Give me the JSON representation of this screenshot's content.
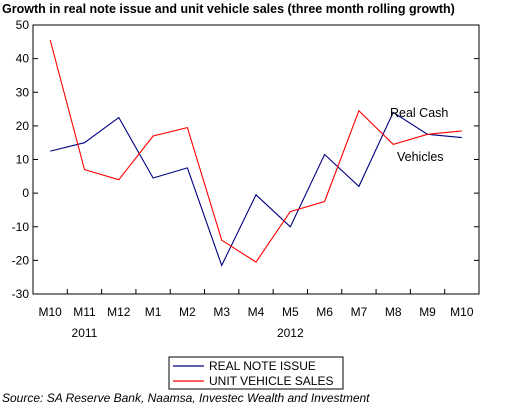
{
  "title": "Growth in real note issue and unit vehicle sales (three month rolling growth)",
  "source": "Source: SA Reserve Bank, Naamsa, Investec Wealth and Investment",
  "chart_data": {
    "type": "line",
    "categories": [
      "M10",
      "M11",
      "M12",
      "M1",
      "M2",
      "M3",
      "M4",
      "M5",
      "M6",
      "M7",
      "M8",
      "M9",
      "M10"
    ],
    "year_labels": [
      {
        "label": "2011",
        "category_index": 1
      },
      {
        "label": "2012",
        "category_index": 7
      }
    ],
    "ylim": [
      -30,
      50
    ],
    "yticks": [
      -30,
      -20,
      -10,
      0,
      10,
      20,
      30,
      40,
      50
    ],
    "series": [
      {
        "name": "REAL NOTE ISSUE",
        "color": "#000080",
        "values": [
          12.5,
          15,
          22.5,
          4.5,
          7.5,
          -21.5,
          -0.5,
          -10,
          11.5,
          2,
          24,
          17.5,
          16.5
        ]
      },
      {
        "name": "UNIT VEHICLE SALES",
        "color": "#ff0000",
        "values": [
          45.5,
          7,
          4,
          17,
          19.5,
          -14,
          -20.5,
          -5.5,
          -2.5,
          24.5,
          14.5,
          17.5,
          18.5
        ]
      }
    ],
    "annotations": [
      "Real Cash",
      "Vehicles"
    ],
    "legend_position": "bottom",
    "grid": false
  }
}
